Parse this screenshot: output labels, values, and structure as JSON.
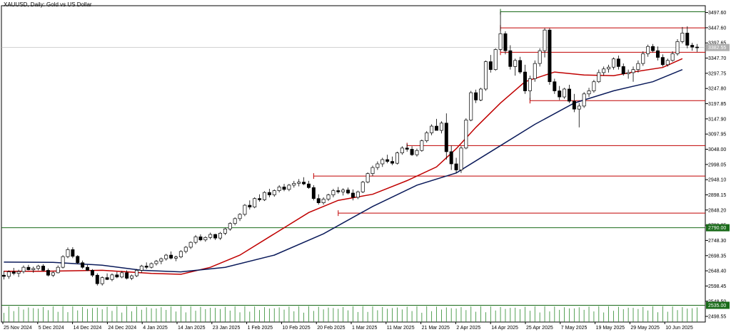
{
  "chart_data": {
    "type": "candlestick",
    "title": "XAUUSD, Daily:  Gold vs US Dollar",
    "y_ticks": [
      3497.6,
      3447.6,
      3397.65,
      3347.7,
      3297.75,
      3247.8,
      3197.85,
      3147.9,
      3097.95,
      3048.0,
      2998.05,
      2948.1,
      2898.15,
      2848.2,
      2798.25,
      2748.3,
      2698.35,
      2648.4,
      2598.45,
      2548.5,
      2498.55
    ],
    "ylim": [
      2480,
      3520
    ],
    "x_labels": [
      "25 Nov 2024",
      "5 Dec 2024",
      "14 Dec 2024",
      "24 Dec 2024",
      "4 Jan 2025",
      "14 Jan 2025",
      "23 Jan 2025",
      "1 Feb 2025",
      "10 Feb 2025",
      "20 Feb 2025",
      "1 Mar 2025",
      "11 Mar 2025",
      "21 Mar 2025",
      "2 Apr 2025",
      "14 Apr 2025",
      "25 Apr 2025",
      "7 May 2025",
      "19 May 2025",
      "29 May 2025",
      "10 Jun 2025"
    ],
    "current_price": {
      "value": 3382.55,
      "label": "3382.55"
    },
    "price_tags": [
      {
        "value": 2790.0,
        "label": "2790.00",
        "color": "#1a6b1a"
      },
      {
        "value": 2535.0,
        "label": "2535.00",
        "color": "#1a6b1a"
      }
    ],
    "horizontal_levels": [
      {
        "price": 3500,
        "color": "#1a6b1a",
        "from_bar": 101
      },
      {
        "price": 3447,
        "color": "#c00000",
        "from_bar": 101
      },
      {
        "price": 3367,
        "color": "#c00000",
        "from_bar": 101
      },
      {
        "price": 3208,
        "color": "#c00000",
        "from_bar": 107
      },
      {
        "price": 3060,
        "color": "#c00000",
        "from_bar": 82
      },
      {
        "price": 2960,
        "color": "#c00000",
        "from_bar": 63
      },
      {
        "price": 2838,
        "color": "#c00000",
        "from_bar": 68
      },
      {
        "price": 2790,
        "color": "#1a6b1a",
        "from_bar": 0
      },
      {
        "price": 2535,
        "color": "#1a6b1a",
        "from_bar": 0
      }
    ],
    "moving_averages": [
      {
        "color": "#c00000",
        "points": [
          [
            0,
            2647
          ],
          [
            8,
            2647
          ],
          [
            20,
            2650
          ],
          [
            30,
            2640
          ],
          [
            36,
            2637
          ],
          [
            42,
            2660
          ],
          [
            48,
            2700
          ],
          [
            55,
            2770
          ],
          [
            62,
            2840
          ],
          [
            68,
            2880
          ],
          [
            75,
            2900
          ],
          [
            82,
            2945
          ],
          [
            88,
            2990
          ],
          [
            92,
            3050
          ],
          [
            96,
            3120
          ],
          [
            101,
            3200
          ],
          [
            106,
            3270
          ],
          [
            112,
            3302
          ],
          [
            118,
            3292
          ],
          [
            124,
            3290
          ],
          [
            128,
            3302
          ],
          [
            134,
            3317
          ],
          [
            138,
            3346
          ]
        ]
      },
      {
        "color": "#0a1a5a",
        "points": [
          [
            0,
            2677
          ],
          [
            10,
            2676
          ],
          [
            20,
            2667
          ],
          [
            28,
            2650
          ],
          [
            36,
            2645
          ],
          [
            45,
            2660
          ],
          [
            55,
            2700
          ],
          [
            65,
            2770
          ],
          [
            75,
            2860
          ],
          [
            84,
            2930
          ],
          [
            92,
            2970
          ],
          [
            100,
            3050
          ],
          [
            108,
            3130
          ],
          [
            116,
            3200
          ],
          [
            124,
            3240
          ],
          [
            132,
            3270
          ],
          [
            138,
            3310
          ]
        ]
      }
    ],
    "candles": [
      [
        2634,
        2648,
        2620,
        2630
      ],
      [
        2630,
        2650,
        2622,
        2645
      ],
      [
        2645,
        2658,
        2634,
        2640
      ],
      [
        2640,
        2652,
        2628,
        2646
      ],
      [
        2646,
        2666,
        2640,
        2660
      ],
      [
        2660,
        2668,
        2650,
        2652
      ],
      [
        2652,
        2662,
        2642,
        2656
      ],
      [
        2656,
        2668,
        2650,
        2664
      ],
      [
        2664,
        2670,
        2646,
        2650
      ],
      [
        2650,
        2656,
        2630,
        2634
      ],
      [
        2634,
        2646,
        2628,
        2642
      ],
      [
        2642,
        2666,
        2640,
        2660
      ],
      [
        2660,
        2700,
        2656,
        2695
      ],
      [
        2695,
        2725,
        2690,
        2718
      ],
      [
        2718,
        2726,
        2690,
        2696
      ],
      [
        2696,
        2700,
        2670,
        2675
      ],
      [
        2675,
        2682,
        2655,
        2660
      ],
      [
        2660,
        2668,
        2648,
        2650
      ],
      [
        2650,
        2654,
        2628,
        2634
      ],
      [
        2634,
        2640,
        2600,
        2606
      ],
      [
        2606,
        2630,
        2600,
        2626
      ],
      [
        2626,
        2640,
        2618,
        2620
      ],
      [
        2620,
        2640,
        2614,
        2635
      ],
      [
        2635,
        2645,
        2624,
        2628
      ],
      [
        2628,
        2648,
        2624,
        2642
      ],
      [
        2642,
        2650,
        2620,
        2624
      ],
      [
        2624,
        2636,
        2618,
        2632
      ],
      [
        2632,
        2654,
        2628,
        2650
      ],
      [
        2650,
        2668,
        2642,
        2664
      ],
      [
        2664,
        2676,
        2654,
        2660
      ],
      [
        2660,
        2676,
        2656,
        2672
      ],
      [
        2672,
        2684,
        2666,
        2680
      ],
      [
        2680,
        2692,
        2670,
        2688
      ],
      [
        2688,
        2704,
        2682,
        2700
      ],
      [
        2700,
        2712,
        2686,
        2690
      ],
      [
        2690,
        2698,
        2680,
        2694
      ],
      [
        2694,
        2716,
        2690,
        2712
      ],
      [
        2712,
        2730,
        2706,
        2726
      ],
      [
        2726,
        2745,
        2720,
        2742
      ],
      [
        2742,
        2766,
        2736,
        2760
      ],
      [
        2760,
        2768,
        2746,
        2750
      ],
      [
        2750,
        2762,
        2744,
        2758
      ],
      [
        2758,
        2774,
        2752,
        2768
      ],
      [
        2768,
        2770,
        2750,
        2756
      ],
      [
        2756,
        2776,
        2750,
        2772
      ],
      [
        2772,
        2790,
        2766,
        2786
      ],
      [
        2786,
        2808,
        2780,
        2804
      ],
      [
        2804,
        2824,
        2798,
        2820
      ],
      [
        2820,
        2838,
        2812,
        2834
      ],
      [
        2834,
        2868,
        2828,
        2864
      ],
      [
        2864,
        2880,
        2850,
        2858
      ],
      [
        2858,
        2890,
        2854,
        2886
      ],
      [
        2886,
        2900,
        2876,
        2882
      ],
      [
        2882,
        2910,
        2878,
        2906
      ],
      [
        2906,
        2918,
        2890,
        2898
      ],
      [
        2898,
        2916,
        2892,
        2912
      ],
      [
        2912,
        2930,
        2906,
        2924
      ],
      [
        2924,
        2934,
        2910,
        2916
      ],
      [
        2916,
        2934,
        2910,
        2930
      ],
      [
        2930,
        2944,
        2922,
        2936
      ],
      [
        2936,
        2950,
        2926,
        2940
      ],
      [
        2940,
        2956,
        2930,
        2934
      ],
      [
        2934,
        2944,
        2918,
        2922
      ],
      [
        2922,
        2930,
        2880,
        2886
      ],
      [
        2886,
        2900,
        2866,
        2872
      ],
      [
        2872,
        2890,
        2866,
        2884
      ],
      [
        2884,
        2902,
        2878,
        2898
      ],
      [
        2898,
        2918,
        2890,
        2912
      ],
      [
        2912,
        2924,
        2902,
        2908
      ],
      [
        2908,
        2920,
        2896,
        2914
      ],
      [
        2914,
        2922,
        2900,
        2904
      ],
      [
        2904,
        2916,
        2880,
        2890
      ],
      [
        2890,
        2912,
        2884,
        2908
      ],
      [
        2908,
        2944,
        2904,
        2940
      ],
      [
        2940,
        2972,
        2936,
        2968
      ],
      [
        2968,
        2994,
        2960,
        2988
      ],
      [
        2988,
        3008,
        2980,
        3000
      ],
      [
        3000,
        3020,
        2990,
        3014
      ],
      [
        3014,
        3030,
        3002,
        3008
      ],
      [
        3008,
        3024,
        2996,
        3002
      ],
      [
        3002,
        3040,
        2998,
        3036
      ],
      [
        3036,
        3058,
        3030,
        3052
      ],
      [
        3052,
        3066,
        3040,
        3048
      ],
      [
        3048,
        3058,
        3026,
        3030
      ],
      [
        3030,
        3050,
        3024,
        3044
      ],
      [
        3044,
        3080,
        3040,
        3076
      ],
      [
        3076,
        3108,
        3070,
        3102
      ],
      [
        3102,
        3130,
        3094,
        3124
      ],
      [
        3124,
        3148,
        3116,
        3110
      ],
      [
        3110,
        3140,
        3100,
        3134
      ],
      [
        3134,
        3166,
        3014,
        3040
      ],
      [
        3040,
        3060,
        2980,
        3000
      ],
      [
        3000,
        3020,
        2970,
        2980
      ],
      [
        2980,
        3058,
        2970,
        3052
      ],
      [
        3052,
        3150,
        3048,
        3144
      ],
      [
        3144,
        3240,
        3140,
        3234
      ],
      [
        3234,
        3244,
        3200,
        3210
      ],
      [
        3210,
        3250,
        3206,
        3246
      ],
      [
        3246,
        3340,
        3240,
        3336
      ],
      [
        3336,
        3358,
        3300,
        3310
      ],
      [
        3310,
        3380,
        3306,
        3376
      ],
      [
        3376,
        3500,
        3370,
        3428
      ],
      [
        3428,
        3436,
        3360,
        3372
      ],
      [
        3372,
        3390,
        3310,
        3320
      ],
      [
        3320,
        3346,
        3290,
        3340
      ],
      [
        3340,
        3352,
        3296,
        3302
      ],
      [
        3302,
        3326,
        3230,
        3240
      ],
      [
        3240,
        3290,
        3210,
        3280
      ],
      [
        3280,
        3340,
        3270,
        3330
      ],
      [
        3330,
        3380,
        3320,
        3372
      ],
      [
        3372,
        3446,
        3350,
        3440
      ],
      [
        3440,
        3446,
        3260,
        3270
      ],
      [
        3270,
        3280,
        3230,
        3240
      ],
      [
        3240,
        3256,
        3210,
        3220
      ],
      [
        3220,
        3250,
        3214,
        3246
      ],
      [
        3246,
        3260,
        3200,
        3206
      ],
      [
        3206,
        3230,
        3170,
        3180
      ],
      [
        3180,
        3200,
        3120,
        3190
      ],
      [
        3190,
        3236,
        3184,
        3230
      ],
      [
        3230,
        3250,
        3220,
        3240
      ],
      [
        3240,
        3276,
        3234,
        3270
      ],
      [
        3270,
        3310,
        3266,
        3300
      ],
      [
        3300,
        3320,
        3290,
        3312
      ],
      [
        3312,
        3326,
        3300,
        3318
      ],
      [
        3318,
        3350,
        3310,
        3345
      ],
      [
        3345,
        3356,
        3310,
        3320
      ],
      [
        3320,
        3330,
        3290,
        3296
      ],
      [
        3296,
        3310,
        3280,
        3300
      ],
      [
        3300,
        3320,
        3270,
        3310
      ],
      [
        3310,
        3340,
        3300,
        3330
      ],
      [
        3330,
        3370,
        3322,
        3362
      ],
      [
        3362,
        3392,
        3352,
        3386
      ],
      [
        3386,
        3394,
        3366,
        3372
      ],
      [
        3372,
        3386,
        3340,
        3350
      ],
      [
        3350,
        3360,
        3320,
        3326
      ],
      [
        3326,
        3346,
        3320,
        3340
      ],
      [
        3340,
        3370,
        3336,
        3362
      ],
      [
        3362,
        3410,
        3356,
        3402
      ],
      [
        3402,
        3450,
        3396,
        3430
      ],
      [
        3430,
        3452,
        3380,
        3390
      ],
      [
        3390,
        3398,
        3372,
        3384
      ],
      [
        3384,
        3394,
        3368,
        3382
      ]
    ],
    "volume": {
      "top": 2535,
      "bottom": 2480
    }
  }
}
